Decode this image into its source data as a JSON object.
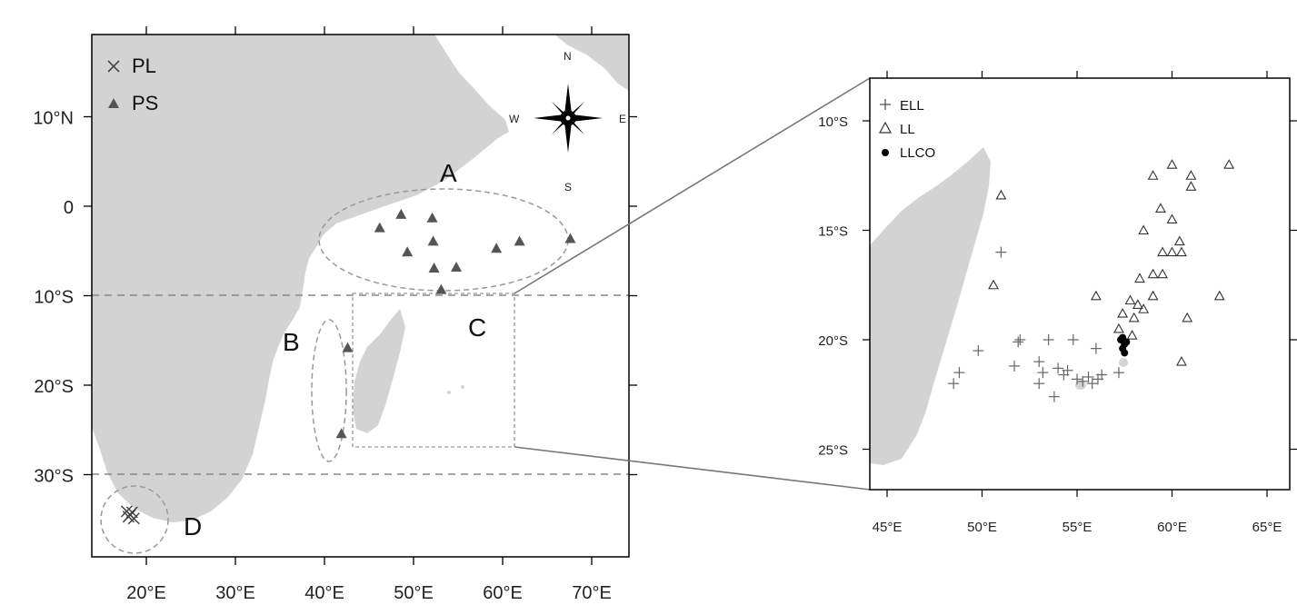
{
  "left_map": {
    "x_ticks": [
      "20°E",
      "30°E",
      "40°E",
      "50°E",
      "60°E",
      "70°E"
    ],
    "y_ticks": [
      "10°N",
      "0",
      "10°S",
      "20°S",
      "30°S"
    ],
    "x_tick_values": [
      20,
      30,
      40,
      50,
      60,
      70
    ],
    "y_tick_values": [
      10,
      0,
      -10,
      -20,
      -30
    ],
    "legend": [
      {
        "symbol": "cross",
        "label": "PL"
      },
      {
        "symbol": "filled-triangle",
        "label": "PS"
      }
    ],
    "compass": {
      "n": "N",
      "s": "S",
      "e": "E",
      "w": "W"
    },
    "regions": {
      "a": "A",
      "b": "B",
      "c": "C",
      "d": "D"
    },
    "boundary_lines_lat": [
      -10,
      -30
    ],
    "ps_points": [
      {
        "lon": 46.2,
        "lat": -2.4
      },
      {
        "lon": 48.6,
        "lat": -0.9
      },
      {
        "lon": 52.1,
        "lat": -1.3
      },
      {
        "lon": 49.3,
        "lat": -5.1
      },
      {
        "lon": 52.2,
        "lat": -3.9
      },
      {
        "lon": 52.3,
        "lat": -6.9
      },
      {
        "lon": 54.8,
        "lat": -6.8
      },
      {
        "lon": 59.3,
        "lat": -4.7
      },
      {
        "lon": 61.9,
        "lat": -3.9
      },
      {
        "lon": 67.6,
        "lat": -3.6
      },
      {
        "lon": 53.1,
        "lat": -9.3
      },
      {
        "lon": 42.6,
        "lat": -15.8
      },
      {
        "lon": 41.9,
        "lat": -25.4
      }
    ],
    "pl_points": [
      {
        "lon": 17.8,
        "lat": -34.1
      },
      {
        "lon": 18.2,
        "lat": -34.5
      },
      {
        "lon": 18.6,
        "lat": -34.9
      },
      {
        "lon": 18.0,
        "lat": -34.7
      },
      {
        "lon": 18.4,
        "lat": -34.2
      }
    ]
  },
  "right_map": {
    "x_ticks": [
      "45°E",
      "50°E",
      "55°E",
      "60°E",
      "65°E"
    ],
    "y_ticks": [
      "10°S",
      "15°S",
      "20°S",
      "25°S"
    ],
    "x_tick_values": [
      45,
      50,
      55,
      60,
      65
    ],
    "y_tick_values": [
      -10,
      -15,
      -20,
      -25
    ],
    "legend": [
      {
        "symbol": "plus",
        "label": "ELL"
      },
      {
        "symbol": "open-triangle",
        "label": "LL"
      },
      {
        "symbol": "filled-dot",
        "label": "LLCO"
      }
    ],
    "ell_points": [
      {
        "lon": 48.5,
        "lat": -22.0
      },
      {
        "lon": 48.8,
        "lat": -21.5
      },
      {
        "lon": 49.8,
        "lat": -20.5
      },
      {
        "lon": 51.0,
        "lat": -16.0
      },
      {
        "lon": 51.7,
        "lat": -21.2
      },
      {
        "lon": 51.9,
        "lat": -20.1
      },
      {
        "lon": 52.0,
        "lat": -20.0
      },
      {
        "lon": 53.0,
        "lat": -21.0
      },
      {
        "lon": 53.2,
        "lat": -21.5
      },
      {
        "lon": 53.0,
        "lat": -22.0
      },
      {
        "lon": 53.5,
        "lat": -20.0
      },
      {
        "lon": 53.8,
        "lat": -22.6
      },
      {
        "lon": 54.0,
        "lat": -21.3
      },
      {
        "lon": 54.3,
        "lat": -21.6
      },
      {
        "lon": 54.5,
        "lat": -21.4
      },
      {
        "lon": 54.8,
        "lat": -20.0
      },
      {
        "lon": 55.0,
        "lat": -21.8
      },
      {
        "lon": 55.3,
        "lat": -21.9
      },
      {
        "lon": 55.6,
        "lat": -21.7
      },
      {
        "lon": 55.8,
        "lat": -22.0
      },
      {
        "lon": 56.1,
        "lat": -21.8
      },
      {
        "lon": 56.0,
        "lat": -20.4
      },
      {
        "lon": 56.3,
        "lat": -21.6
      },
      {
        "lon": 57.2,
        "lat": -21.5
      }
    ],
    "ll_points": [
      {
        "lon": 51.0,
        "lat": -13.4
      },
      {
        "lon": 50.6,
        "lat": -17.5
      },
      {
        "lon": 56.0,
        "lat": -18.0
      },
      {
        "lon": 57.2,
        "lat": -19.5
      },
      {
        "lon": 57.4,
        "lat": -18.8
      },
      {
        "lon": 57.8,
        "lat": -18.2
      },
      {
        "lon": 58.0,
        "lat": -19.0
      },
      {
        "lon": 58.2,
        "lat": -18.4
      },
      {
        "lon": 58.5,
        "lat": -18.6
      },
      {
        "lon": 57.9,
        "lat": -19.8
      },
      {
        "lon": 58.3,
        "lat": -17.2
      },
      {
        "lon": 58.5,
        "lat": -15.0
      },
      {
        "lon": 59.0,
        "lat": -17.0
      },
      {
        "lon": 59.0,
        "lat": -18.0
      },
      {
        "lon": 59.0,
        "lat": -12.5
      },
      {
        "lon": 59.4,
        "lat": -14.0
      },
      {
        "lon": 59.5,
        "lat": -16.0
      },
      {
        "lon": 59.5,
        "lat": -17.0
      },
      {
        "lon": 60.0,
        "lat": -12.0
      },
      {
        "lon": 60.0,
        "lat": -14.5
      },
      {
        "lon": 60.0,
        "lat": -16.0
      },
      {
        "lon": 60.4,
        "lat": -15.5
      },
      {
        "lon": 60.5,
        "lat": -16.0
      },
      {
        "lon": 60.5,
        "lat": -21.0
      },
      {
        "lon": 60.8,
        "lat": -19.0
      },
      {
        "lon": 61.0,
        "lat": -12.5
      },
      {
        "lon": 61.0,
        "lat": -13.0
      },
      {
        "lon": 62.5,
        "lat": -18.0
      },
      {
        "lon": 63.0,
        "lat": -12.0
      }
    ],
    "llco_points": [
      {
        "lon": 57.3,
        "lat": -20.0
      },
      {
        "lon": 57.5,
        "lat": -20.2
      },
      {
        "lon": 57.4,
        "lat": -20.4
      },
      {
        "lon": 57.6,
        "lat": -20.1
      },
      {
        "lon": 57.5,
        "lat": -20.6
      },
      {
        "lon": 57.4,
        "lat": -19.9
      }
    ]
  }
}
